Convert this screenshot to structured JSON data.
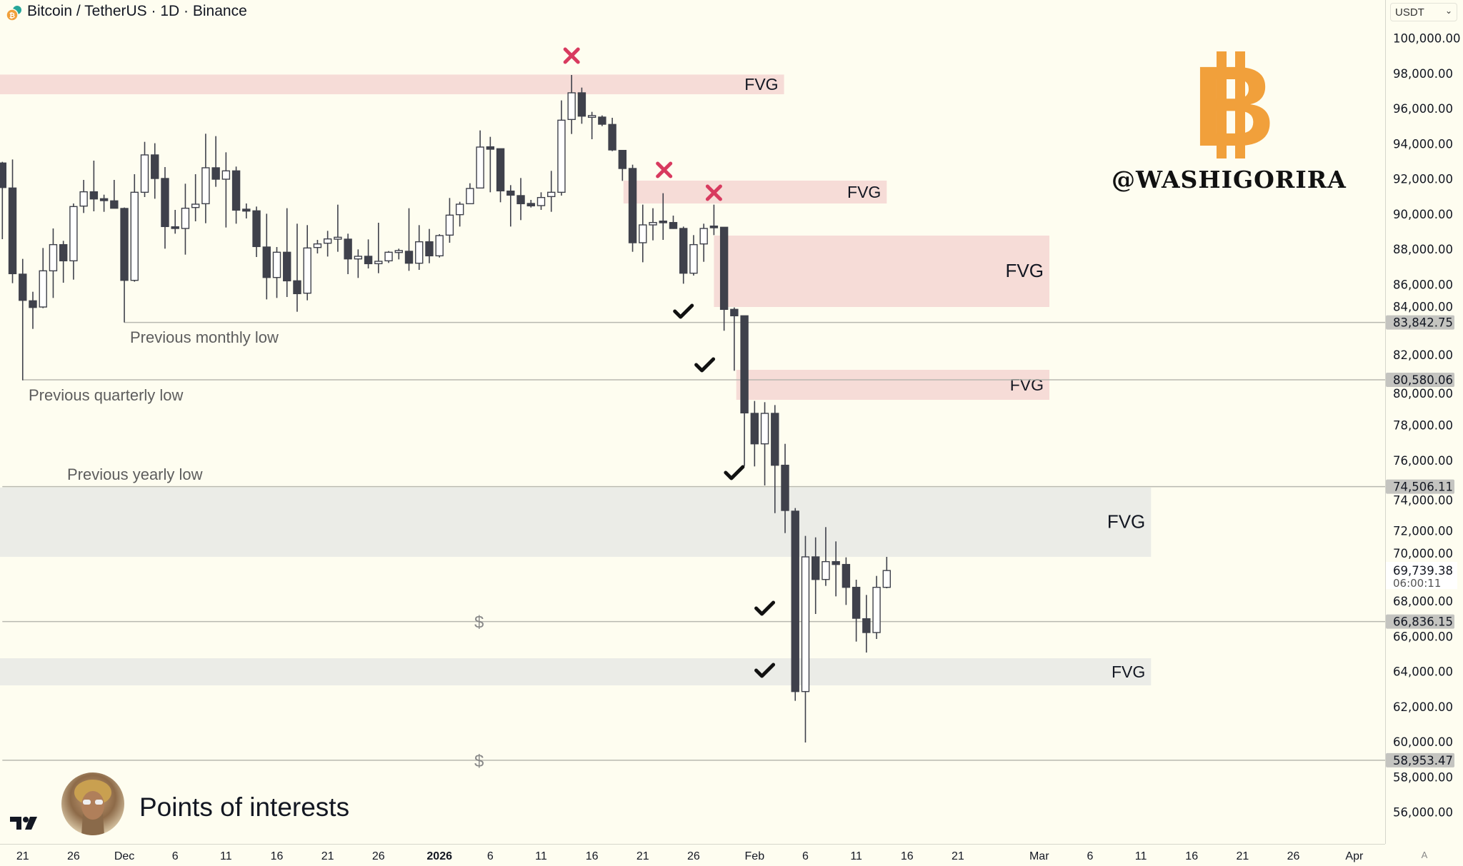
{
  "header": {
    "title": "Bitcoin / TetherUS · 1D · Binance",
    "symbol_icon": "bitcoin-tether-icon"
  },
  "price_axis": {
    "currency": "USDT",
    "currency_dropdown_icon": "chevron-down-icon"
  },
  "bottom": {
    "caption": "Points of interests",
    "auto_scale_label": "A",
    "logo": "tradingview-logo"
  },
  "brand": {
    "handle": "@WASHIGORIRA",
    "logo_icon": "bitcoin-logo"
  },
  "colors": {
    "background": "#fefdf0",
    "bear": "#3f414b",
    "bull": "#ffffff",
    "fvg_pink": "#f6dcd7",
    "fvg_gray": "#ebece7",
    "cross": "#d83a5f",
    "btc_orange": "#f1a03b",
    "level_line": "#b8b8b0",
    "badge": "#c4c4c0"
  },
  "chart_data": {
    "type": "candlestick",
    "title": "Bitcoin / TetherUS · 1D · Binance",
    "first_date": "2025-11-19",
    "ylim": [
      55000,
      101000
    ],
    "y_ticks": [
      "100,000.00",
      "98,000.00",
      "96,000.00",
      "94,000.00",
      "92,000.00",
      "90,000.00",
      "88,000.00",
      "86,000.00",
      "84,000.00",
      "82,000.00",
      "80,000.00",
      "78,000.00",
      "76,000.00",
      "74,000.00",
      "72,000.00",
      "70,000.00",
      "68,000.00",
      "66,000.00",
      "64,000.00",
      "62,000.00",
      "60,000.00",
      "58,000.00",
      "56,000.00"
    ],
    "y_tick_values": [
      100000,
      98000,
      96000,
      94000,
      92000,
      90000,
      88000,
      86000,
      84000,
      82000,
      80000,
      78000,
      76000,
      74000,
      72000,
      70000,
      68000,
      66000,
      64000,
      62000,
      60000,
      58000,
      56000
    ],
    "x_ticks": [
      {
        "label": "21",
        "day": 2
      },
      {
        "label": "26",
        "day": 7
      },
      {
        "label": "Dec",
        "day": 12,
        "bold": false
      },
      {
        "label": "6",
        "day": 17
      },
      {
        "label": "11",
        "day": 22
      },
      {
        "label": "16",
        "day": 27
      },
      {
        "label": "21",
        "day": 32
      },
      {
        "label": "26",
        "day": 37
      },
      {
        "label": "2026",
        "day": 43,
        "bold": true
      },
      {
        "label": "6",
        "day": 48
      },
      {
        "label": "11",
        "day": 53
      },
      {
        "label": "16",
        "day": 58
      },
      {
        "label": "21",
        "day": 63
      },
      {
        "label": "26",
        "day": 68
      },
      {
        "label": "Feb",
        "day": 74
      },
      {
        "label": "6",
        "day": 79
      },
      {
        "label": "11",
        "day": 84
      },
      {
        "label": "16",
        "day": 89
      },
      {
        "label": "21",
        "day": 94
      },
      {
        "label": "Mar",
        "day": 102
      },
      {
        "label": "6",
        "day": 107
      },
      {
        "label": "11",
        "day": 112
      },
      {
        "label": "16",
        "day": 117
      },
      {
        "label": "21",
        "day": 122
      },
      {
        "label": "26",
        "day": 127
      },
      {
        "label": "Apr",
        "day": 133
      }
    ],
    "ohlc_fields": [
      "open",
      "high",
      "low",
      "close"
    ],
    "candles": [
      [
        92905,
        92972,
        88576,
        91511
      ],
      [
        91484,
        93108,
        86073,
        86614
      ],
      [
        86587,
        87453,
        80554,
        85099
      ],
      [
        85072,
        85586,
        83475,
        84693
      ],
      [
        84720,
        88075,
        84653,
        86776
      ],
      [
        86776,
        89184,
        85234,
        88265
      ],
      [
        88265,
        88481,
        86100,
        87345
      ],
      [
        87345,
        90605,
        86276,
        90429
      ],
      [
        90456,
        91944,
        90064,
        91268
      ],
      [
        91268,
        93040,
        90158,
        90862
      ],
      [
        90835,
        91105,
        90131,
        90808
      ],
      [
        90754,
        91944,
        90334,
        90334
      ],
      [
        90321,
        90375,
        83842,
        86235
      ],
      [
        86235,
        92269,
        86154,
        91241
      ],
      [
        91241,
        94108,
        90970,
        93365
      ],
      [
        93365,
        94027,
        90876,
        92025
      ],
      [
        92025,
        92675,
        88035,
        89293
      ],
      [
        89279,
        90240,
        88887,
        89184
      ],
      [
        89184,
        91728,
        87696,
        90334
      ],
      [
        90375,
        92269,
        89590,
        90564
      ],
      [
        90591,
        94569,
        89482,
        92634
      ],
      [
        92634,
        94433,
        91552,
        91985
      ],
      [
        91985,
        93513,
        89239,
        92458
      ],
      [
        92458,
        92702,
        89455,
        90226
      ],
      [
        90240,
        90605,
        89753,
        90213
      ],
      [
        90186,
        90429,
        87561,
        88156
      ],
      [
        88129,
        90023,
        85153,
        86397
      ],
      [
        86397,
        88129,
        85234,
        87832
      ],
      [
        87832,
        90334,
        85288,
        86208
      ],
      [
        86208,
        89455,
        84450,
        85478
      ],
      [
        85505,
        89374,
        85099,
        88075
      ],
      [
        88102,
        88535,
        87764,
        88305
      ],
      [
        88346,
        89049,
        87588,
        88589
      ],
      [
        88616,
        90537,
        87859,
        88643
      ],
      [
        88576,
        88887,
        86587,
        87453
      ],
      [
        87453,
        87994,
        86371,
        87602
      ],
      [
        87602,
        88562,
        86912,
        87182
      ],
      [
        87182,
        89509,
        86641,
        87318
      ],
      [
        87345,
        87900,
        87223,
        87832
      ],
      [
        87859,
        88035,
        87426,
        87886
      ],
      [
        87886,
        90334,
        86776,
        87209
      ],
      [
        87209,
        89374,
        86830,
        88427
      ],
      [
        88427,
        89157,
        87209,
        87629
      ],
      [
        87629,
        88860,
        87534,
        88779
      ],
      [
        88806,
        90916,
        88373,
        89942
      ],
      [
        89969,
        90700,
        89293,
        90564
      ],
      [
        90591,
        91755,
        90564,
        91457
      ],
      [
        91484,
        94758,
        91457,
        93811
      ],
      [
        93784,
        94393,
        91241,
        93730
      ],
      [
        93716,
        93716,
        90673,
        91322
      ],
      [
        91308,
        91647,
        89293,
        91078
      ],
      [
        91051,
        92052,
        89658,
        90591
      ],
      [
        90564,
        90808,
        90375,
        90510
      ],
      [
        90483,
        91241,
        90240,
        90943
      ],
      [
        90997,
        92458,
        90131,
        91241
      ],
      [
        91240,
        96462,
        91051,
        95339
      ],
      [
        95380,
        97910,
        94555,
        96895
      ],
      [
        96895,
        97193,
        95136,
        95569
      ],
      [
        95542,
        95813,
        94257,
        95560
      ],
      [
        95515,
        95610,
        95001,
        95110
      ],
      [
        95096,
        95475,
        93580,
        93648
      ],
      [
        93621,
        93621,
        91890,
        92593
      ],
      [
        92593,
        92810,
        87858,
        88373
      ],
      [
        88373,
        90537,
        87263,
        89387
      ],
      [
        89428,
        90334,
        88508,
        89482
      ],
      [
        89563,
        91186,
        88535,
        89550
      ],
      [
        89522,
        89915,
        89160,
        89184
      ],
      [
        89184,
        89292,
        86046,
        86641
      ],
      [
        86641,
        88806,
        86506,
        88265
      ],
      [
        88305,
        89455,
        87290,
        89184
      ],
      [
        89279,
        90537,
        88806,
        89265
      ],
      [
        89252,
        89252,
        83368,
        84585
      ],
      [
        84585,
        84693,
        81095,
        84220
      ],
      [
        84220,
        84220,
        75684,
        78700
      ],
      [
        78673,
        79377,
        75657,
        76941
      ],
      [
        76941,
        79309,
        74574,
        78673
      ],
      [
        78673,
        79147,
        73000,
        75724
      ],
      [
        75724,
        76941,
        71868,
        73154
      ],
      [
        73113,
        73289,
        62331,
        62859
      ],
      [
        62859,
        71706,
        59964,
        70516
      ],
      [
        70516,
        71625,
        67269,
        69230
      ],
      [
        69230,
        72207,
        68865,
        70245
      ],
      [
        70245,
        71395,
        68270,
        70083
      ],
      [
        70083,
        70488,
        67783,
        68784
      ],
      [
        68784,
        69217,
        65700,
        67025
      ],
      [
        66998,
        68351,
        65077,
        66214
      ],
      [
        66214,
        69433,
        65848,
        68784
      ],
      [
        68784,
        70516,
        68730,
        69739
      ]
    ],
    "levels": [
      {
        "price": 83842.75,
        "label": "83,842.75",
        "from_day": 12,
        "note": "Previous monthly low"
      },
      {
        "price": 80580.06,
        "label": "80,580.06",
        "from_day": 2,
        "note": "Previous quarterly low"
      },
      {
        "price": 74506.11,
        "label": "74,506.11",
        "from_day": 0,
        "note": "Previous yearly low"
      },
      {
        "price": 66836.15,
        "label": "66,836.15",
        "from_day": 0,
        "note": ""
      },
      {
        "price": 58953.47,
        "label": "58,953.47",
        "from_day": 0,
        "note": ""
      }
    ],
    "last_price": {
      "price": 69739.38,
      "label": "69,739.38",
      "countdown": "06:00:11"
    },
    "fvg_zones": [
      {
        "label": "FVG",
        "color": "pink",
        "from_day": -1,
        "to_day": 76.9,
        "top": 97933,
        "bottom": 96814
      },
      {
        "label": "FVG",
        "color": "pink",
        "from_day": 61.1,
        "to_day": 87,
        "top": 91904,
        "bottom": 90605
      },
      {
        "label": "FVG",
        "color": "pink",
        "from_day": 70,
        "to_day": 103,
        "top": 88779,
        "bottom": 84720
      },
      {
        "label": "FVG",
        "color": "pink",
        "from_day": 72.2,
        "to_day": 103,
        "top": 81148,
        "bottom": 79443
      },
      {
        "label": "FVG",
        "color": "gray",
        "from_day": -1,
        "to_day": 113,
        "top": 74455,
        "bottom": 70518
      },
      {
        "label": "FVG",
        "color": "gray",
        "from_day": -1,
        "to_day": 113,
        "top": 64753,
        "bottom": 63210
      }
    ],
    "cross_marks": [
      {
        "day": 56,
        "price": 99006
      },
      {
        "day": 65.1,
        "price": 92512
      },
      {
        "day": 70,
        "price": 91213
      }
    ],
    "check_marks": [
      {
        "day": 67,
        "price": 84477
      },
      {
        "day": 69.1,
        "price": 81433
      },
      {
        "day": 72,
        "price": 75305
      },
      {
        "day": 75,
        "price": 67594
      },
      {
        "day": 75,
        "price": 64063
      }
    ],
    "dollar_marks": [
      {
        "day": 46.9,
        "price": 66836,
        "label": "$"
      },
      {
        "day": 46.9,
        "price": 58953,
        "label": "$"
      }
    ]
  }
}
